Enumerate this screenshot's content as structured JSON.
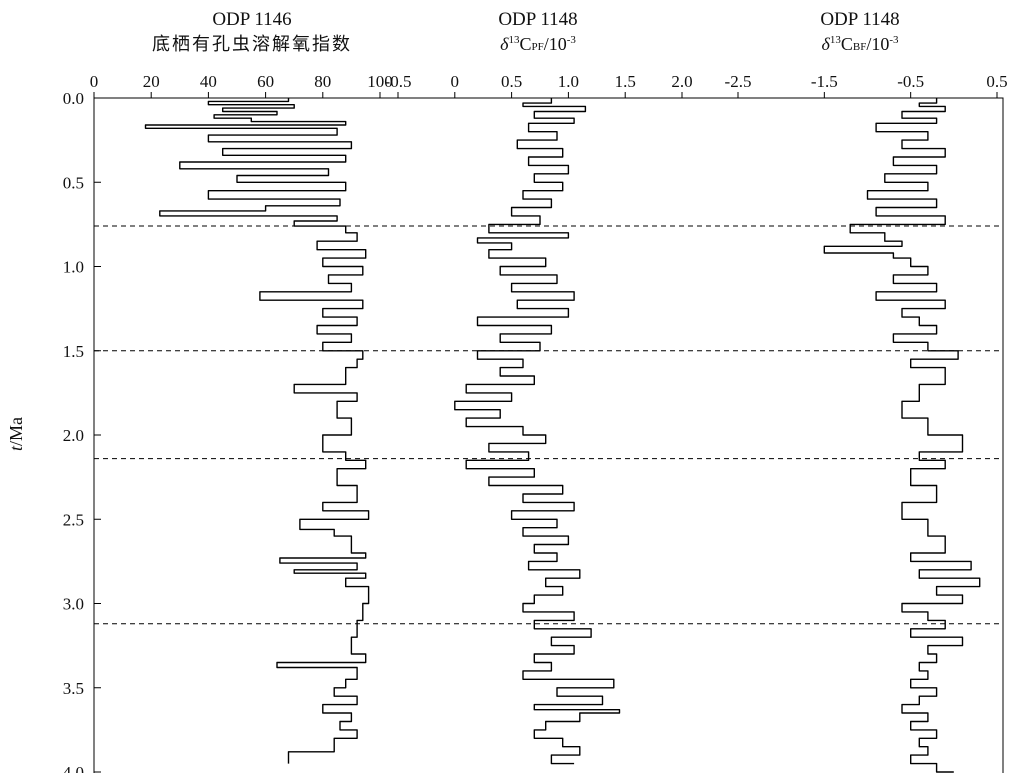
{
  "chart_data": {
    "type": "line",
    "orientation": "vertical-depth",
    "y_axis": {
      "label_italic": "t",
      "label_rest": "/Ma",
      "lim": [
        0.0,
        4.0
      ],
      "inverted": true,
      "ticks": [
        "0.0",
        "0.5",
        "1.0",
        "1.5",
        "2.0",
        "2.5",
        "3.0",
        "3.5",
        "4.0"
      ],
      "tick_values": [
        0.0,
        0.5,
        1.0,
        1.5,
        2.0,
        2.5,
        3.0,
        3.5,
        4.0
      ]
    },
    "boundaries": [
      0.76,
      1.5,
      2.14,
      3.12
    ],
    "panels": [
      {
        "id": "p1",
        "title_line1": "ODP 1146",
        "title_line2": "底栖有孔虫溶解氧指数",
        "xlim": [
          0,
          100
        ],
        "ticks": [
          "0",
          "20",
          "40",
          "60",
          "80",
          "100"
        ],
        "tick_values": [
          0,
          20,
          40,
          60,
          80,
          100
        ],
        "series_t": [
          0.0,
          0.02,
          0.04,
          0.06,
          0.08,
          0.1,
          0.12,
          0.14,
          0.16,
          0.18,
          0.22,
          0.26,
          0.3,
          0.34,
          0.38,
          0.42,
          0.46,
          0.5,
          0.55,
          0.6,
          0.64,
          0.67,
          0.7,
          0.73,
          0.76,
          0.8,
          0.85,
          0.9,
          0.95,
          1.0,
          1.05,
          1.1,
          1.15,
          1.2,
          1.25,
          1.3,
          1.35,
          1.4,
          1.45,
          1.5,
          1.55,
          1.6,
          1.7,
          1.75,
          1.8,
          1.9,
          2.0,
          2.1,
          2.15,
          2.2,
          2.3,
          2.4,
          2.45,
          2.5,
          2.56,
          2.6,
          2.7,
          2.73,
          2.76,
          2.8,
          2.82,
          2.85,
          2.9,
          3.0,
          3.1,
          3.2,
          3.3,
          3.35,
          3.38,
          3.45,
          3.5,
          3.55,
          3.6,
          3.65,
          3.7,
          3.75,
          3.8,
          3.88,
          3.95
        ],
        "series_x": [
          68,
          40,
          70,
          45,
          64,
          42,
          55,
          88,
          18,
          85,
          40,
          90,
          45,
          88,
          30,
          82,
          50,
          88,
          40,
          86,
          60,
          23,
          85,
          70,
          88,
          92,
          78,
          95,
          80,
          94,
          82,
          90,
          58,
          94,
          80,
          92,
          78,
          90,
          80,
          94,
          92,
          88,
          70,
          92,
          85,
          90,
          80,
          88,
          95,
          85,
          92,
          80,
          96,
          72,
          84,
          90,
          95,
          65,
          92,
          70,
          95,
          88,
          96,
          94,
          92,
          90,
          95,
          64,
          92,
          88,
          84,
          92,
          80,
          90,
          86,
          92,
          84,
          68,
          68
        ],
        "color": "#000000"
      },
      {
        "id": "p2",
        "title_line1": "ODP 1148",
        "sub_symbol": "δ",
        "sub_sup": "13",
        "sub_main": "C",
        "sub_small": "PF",
        "sub_unit": "/10",
        "sub_unit_sup": "-3",
        "xlim": [
          -0.5,
          2.0
        ],
        "ticks": [
          "-0.5",
          "0",
          "0.5",
          "1.0",
          "1.5",
          "2.0"
        ],
        "tick_values": [
          -0.5,
          0,
          0.5,
          1.0,
          1.5,
          2.0
        ],
        "series_t": [
          0.0,
          0.03,
          0.05,
          0.08,
          0.12,
          0.15,
          0.2,
          0.25,
          0.3,
          0.35,
          0.4,
          0.45,
          0.5,
          0.55,
          0.6,
          0.65,
          0.7,
          0.75,
          0.8,
          0.83,
          0.86,
          0.9,
          0.95,
          1.0,
          1.05,
          1.1,
          1.15,
          1.2,
          1.25,
          1.3,
          1.35,
          1.4,
          1.45,
          1.5,
          1.55,
          1.6,
          1.65,
          1.7,
          1.75,
          1.8,
          1.85,
          1.9,
          1.95,
          2.0,
          2.05,
          2.1,
          2.15,
          2.2,
          2.25,
          2.3,
          2.35,
          2.4,
          2.45,
          2.5,
          2.55,
          2.6,
          2.65,
          2.7,
          2.75,
          2.8,
          2.85,
          2.9,
          2.95,
          3.0,
          3.05,
          3.1,
          3.15,
          3.2,
          3.25,
          3.3,
          3.35,
          3.4,
          3.45,
          3.5,
          3.55,
          3.6,
          3.63,
          3.65,
          3.7,
          3.75,
          3.8,
          3.85,
          3.9,
          3.95
        ],
        "series_x": [
          0.85,
          0.6,
          1.15,
          0.7,
          1.05,
          0.65,
          0.9,
          0.55,
          0.95,
          0.65,
          1.0,
          0.7,
          0.95,
          0.6,
          0.85,
          0.5,
          0.75,
          0.3,
          1.0,
          0.2,
          0.5,
          0.3,
          0.8,
          0.4,
          0.9,
          0.5,
          1.05,
          0.55,
          1.0,
          0.2,
          0.85,
          0.4,
          0.75,
          0.2,
          0.6,
          0.4,
          0.7,
          0.1,
          0.5,
          0.0,
          0.4,
          0.1,
          0.6,
          0.8,
          0.3,
          0.65,
          0.1,
          0.7,
          0.3,
          0.95,
          0.6,
          1.05,
          0.5,
          0.9,
          0.6,
          1.0,
          0.7,
          0.9,
          0.65,
          1.1,
          0.8,
          0.95,
          0.7,
          0.6,
          1.05,
          0.7,
          1.2,
          0.85,
          1.05,
          0.7,
          0.85,
          0.6,
          1.4,
          0.9,
          1.3,
          0.7,
          1.45,
          1.1,
          0.8,
          0.7,
          0.95,
          1.1,
          0.85,
          1.05
        ],
        "color": "#000000"
      },
      {
        "id": "p3",
        "title_line1": "ODP 1148",
        "sub_symbol": "δ",
        "sub_sup": "13",
        "sub_main": "C",
        "sub_small": "BF",
        "sub_unit": "/10",
        "sub_unit_sup": "-3",
        "xlim": [
          -2.5,
          0.5
        ],
        "ticks": [
          "-2.5",
          "-1.5",
          "-0.5",
          "0.5"
        ],
        "tick_values": [
          -2.5,
          -1.5,
          -0.5,
          0.5
        ],
        "series_t": [
          0.0,
          0.03,
          0.05,
          0.08,
          0.12,
          0.15,
          0.2,
          0.25,
          0.3,
          0.35,
          0.4,
          0.45,
          0.5,
          0.55,
          0.6,
          0.65,
          0.7,
          0.75,
          0.8,
          0.85,
          0.88,
          0.92,
          0.95,
          1.0,
          1.05,
          1.1,
          1.15,
          1.2,
          1.25,
          1.3,
          1.35,
          1.4,
          1.45,
          1.5,
          1.55,
          1.6,
          1.7,
          1.8,
          1.9,
          2.0,
          2.1,
          2.15,
          2.2,
          2.3,
          2.4,
          2.5,
          2.6,
          2.7,
          2.75,
          2.8,
          2.85,
          2.9,
          2.95,
          3.0,
          3.05,
          3.1,
          3.15,
          3.2,
          3.25,
          3.3,
          3.35,
          3.4,
          3.45,
          3.5,
          3.55,
          3.6,
          3.65,
          3.7,
          3.75,
          3.8,
          3.85,
          3.9,
          3.95,
          4.0
        ],
        "series_x": [
          -0.2,
          -0.4,
          -0.1,
          -0.6,
          -0.2,
          -0.9,
          -0.3,
          -0.6,
          -0.1,
          -0.7,
          -0.2,
          -0.8,
          -0.3,
          -1.0,
          -0.2,
          -0.9,
          -0.1,
          -1.2,
          -0.8,
          -0.6,
          -1.5,
          -0.7,
          -0.5,
          -0.3,
          -0.7,
          -0.2,
          -0.9,
          -0.1,
          -0.6,
          -0.4,
          -0.2,
          -0.7,
          -0.3,
          0.05,
          -0.5,
          -0.1,
          -0.4,
          -0.6,
          -0.3,
          0.1,
          -0.4,
          -0.1,
          -0.5,
          -0.2,
          -0.6,
          -0.3,
          -0.1,
          -0.5,
          0.2,
          -0.4,
          0.3,
          -0.2,
          0.1,
          -0.6,
          -0.3,
          -0.1,
          -0.5,
          0.1,
          -0.3,
          -0.2,
          -0.4,
          -0.3,
          -0.5,
          -0.2,
          -0.4,
          -0.6,
          -0.3,
          -0.5,
          -0.2,
          -0.4,
          -0.3,
          -0.5,
          -0.2,
          0.0
        ],
        "color": "#000000"
      }
    ]
  }
}
